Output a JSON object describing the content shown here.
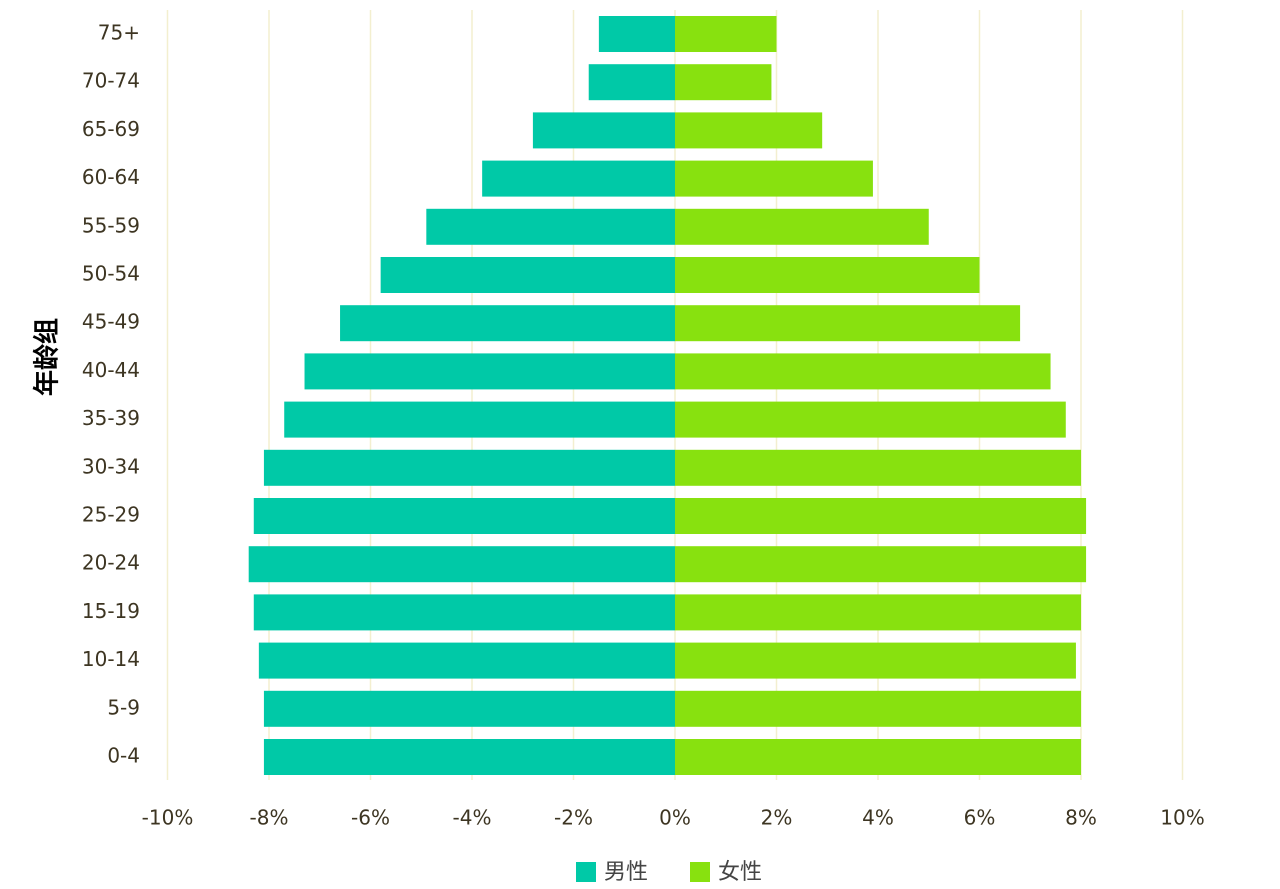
{
  "chart_data": {
    "type": "bar",
    "orientation": "horizontal",
    "subtype": "population-pyramid",
    "title": "",
    "ylabel": "年龄组",
    "xlabel": "",
    "categories": [
      "75+",
      "70-74",
      "65-69",
      "60-64",
      "55-59",
      "50-54",
      "45-49",
      "40-44",
      "35-39",
      "30-34",
      "25-29",
      "20-24",
      "15-19",
      "10-14",
      "5-9",
      "0-4"
    ],
    "series": [
      {
        "name": "男性",
        "color": "#00c9a7",
        "values": [
          -1.5,
          -1.7,
          -2.8,
          -3.8,
          -4.9,
          -5.8,
          -6.6,
          -7.3,
          -7.7,
          -8.1,
          -8.3,
          -8.4,
          -8.3,
          -8.2,
          -8.1,
          -8.1
        ]
      },
      {
        "name": "女性",
        "color": "#88e10f",
        "values": [
          2.0,
          1.9,
          2.9,
          3.9,
          5.0,
          6.0,
          6.8,
          7.4,
          7.7,
          8.0,
          8.1,
          8.1,
          8.0,
          7.9,
          8.0,
          8.0
        ]
      }
    ],
    "xlim": [
      -10,
      10
    ],
    "xticks": [
      -10,
      -8,
      -6,
      -4,
      -2,
      0,
      2,
      4,
      6,
      8,
      10
    ],
    "xtick_labels": [
      "-10%",
      "-8%",
      "-6%",
      "-4%",
      "-2%",
      "0%",
      "2%",
      "4%",
      "6%",
      "8%",
      "10%"
    ],
    "grid": true,
    "grid_color": "#f3efcf",
    "legend_position": "bottom"
  }
}
